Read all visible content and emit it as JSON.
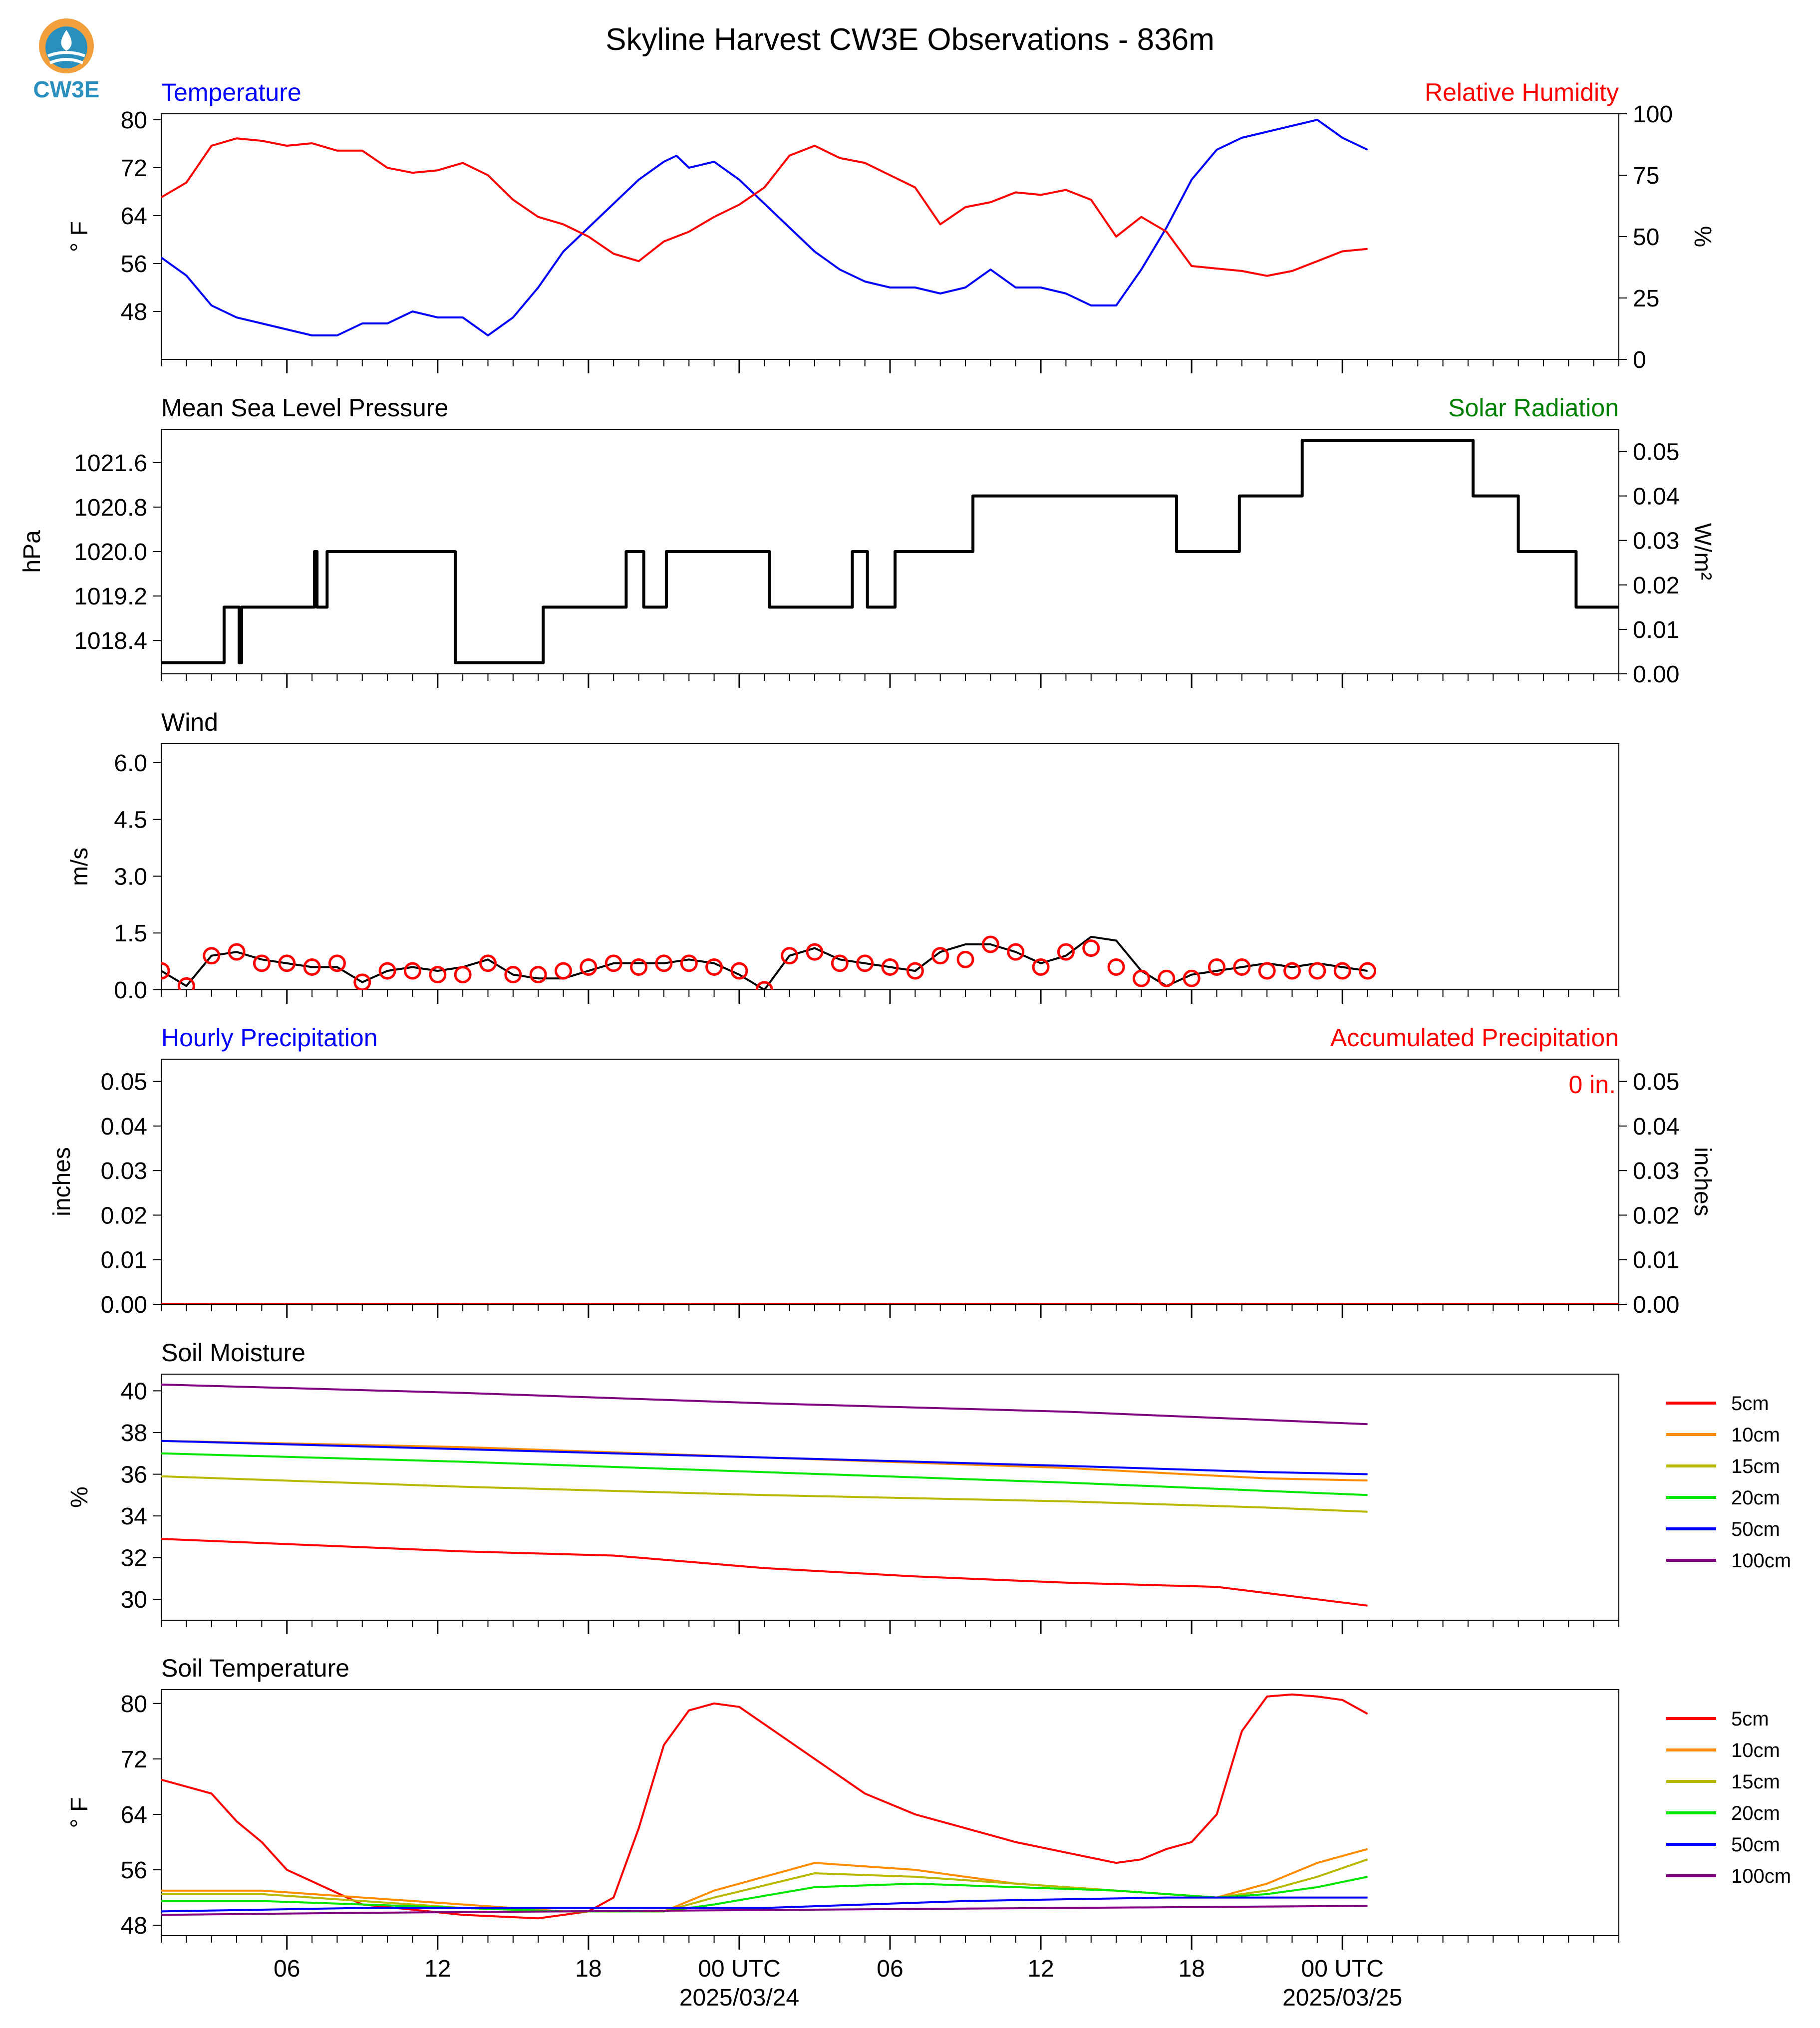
{
  "title": "Skyline Harvest CW3E Observations - 836m",
  "logo": {
    "text": "CW3E",
    "color": "#2a8fbd",
    "accent": "#f2a03d"
  },
  "colors": {
    "blue": "#0000ff",
    "red": "#ff0000",
    "green": "#008000",
    "black": "#000000"
  },
  "x_axis": {
    "range_hours": [
      0,
      58
    ],
    "ticks": [
      {
        "h": 5,
        "label": "06"
      },
      {
        "h": 11,
        "label": "12"
      },
      {
        "h": 17,
        "label": "18"
      },
      {
        "h": 23,
        "label": "00 UTC",
        "date": "2025/03/24"
      },
      {
        "h": 29,
        "label": "06"
      },
      {
        "h": 35,
        "label": "12"
      },
      {
        "h": 41,
        "label": "18"
      },
      {
        "h": 47,
        "label": "00 UTC",
        "date": "2025/03/25"
      }
    ]
  },
  "chart_data": [
    {
      "type": "line",
      "panel": "temperature-rh",
      "title_left": "Temperature",
      "title_right": "Relative Humidity",
      "ylabel": "° F",
      "ylabel_right": "%",
      "ylim": [
        40,
        81
      ],
      "yticks": [
        48,
        56,
        64,
        72,
        80
      ],
      "ylim_right": [
        0,
        100
      ],
      "yticks_right": [
        0,
        25,
        50,
        75,
        100
      ],
      "series": [
        {
          "name": "Temperature",
          "axis": "left",
          "color": "#0000ff",
          "x": [
            0,
            1,
            2,
            3,
            4,
            5,
            6,
            7,
            8,
            9,
            10,
            11,
            12,
            13,
            14,
            15,
            16,
            17,
            18,
            19,
            20,
            20.5,
            21,
            22,
            23,
            24,
            25,
            26,
            27,
            28,
            29,
            30,
            31,
            32,
            33,
            34,
            35,
            36,
            37,
            38,
            39,
            40,
            41,
            42,
            43,
            44,
            45,
            46,
            47,
            48
          ],
          "y": [
            57,
            54,
            49,
            47,
            46,
            45,
            44,
            44,
            46,
            46,
            48,
            47,
            47,
            44,
            47,
            52,
            58,
            62,
            66,
            70,
            73,
            74,
            72,
            73,
            70,
            66,
            62,
            58,
            55,
            53,
            52,
            52,
            51,
            52,
            55,
            52,
            52,
            51,
            49,
            49,
            55,
            62,
            70,
            75,
            77,
            78,
            79,
            80,
            77,
            75
          ]
        },
        {
          "name": "Relative Humidity",
          "axis": "right",
          "color": "#ff0000",
          "x": [
            0,
            1,
            2,
            3,
            4,
            5,
            6,
            7,
            8,
            9,
            10,
            11,
            12,
            13,
            14,
            15,
            16,
            17,
            18,
            19,
            20,
            21,
            22,
            23,
            24,
            25,
            26,
            27,
            28,
            29,
            30,
            31,
            32,
            33,
            34,
            35,
            36,
            37,
            38,
            39,
            40,
            41,
            42,
            43,
            44,
            45,
            46,
            47,
            48
          ],
          "y": [
            66,
            72,
            87,
            90,
            89,
            87,
            88,
            85,
            85,
            78,
            76,
            77,
            80,
            75,
            65,
            58,
            55,
            50,
            43,
            40,
            48,
            52,
            58,
            63,
            70,
            83,
            87,
            82,
            80,
            75,
            70,
            55,
            62,
            64,
            68,
            67,
            69,
            65,
            50,
            58,
            52,
            38,
            37,
            36,
            34,
            36,
            40,
            44,
            45
          ]
        }
      ]
    },
    {
      "type": "line",
      "panel": "pressure",
      "title_left": "Mean Sea Level Pressure",
      "title_right": "Solar Radiation",
      "ylabel": "hPa",
      "ylabel_right": "W/m²",
      "ylim": [
        1017.8,
        1022.2
      ],
      "yticks": [
        1018.4,
        1019.2,
        1020.0,
        1020.8,
        1021.6
      ],
      "ylim_right": [
        0,
        0.055
      ],
      "yticks_right": [
        0.0,
        0.01,
        0.02,
        0.03,
        0.04,
        0.05
      ],
      "series": [
        {
          "name": "Solar Radiation",
          "axis": "right",
          "color": "#000000",
          "x": [
            0,
            2.5,
            2.5,
            3.1,
            3.1,
            3.2,
            3.2,
            6.1,
            6.1,
            6.2,
            6.2,
            6.6,
            6.6,
            11.7,
            11.7,
            15.2,
            15.2,
            18.5,
            18.5,
            19.2,
            19.2,
            20.1,
            20.1,
            24.2,
            24.2,
            27.5,
            27.5,
            28.1,
            28.1,
            29.2,
            29.2,
            32.3,
            32.3,
            40.4,
            40.4,
            42.9,
            42.9,
            45.4,
            45.4,
            52.2,
            52.2,
            54.0,
            54.0,
            56.3,
            56.3,
            56.4,
            56.4,
            58
          ],
          "y": [
            0.0025,
            0.0025,
            0.015,
            0.015,
            0.0025,
            0.0025,
            0.015,
            0.015,
            0.0275,
            0.0275,
            0.015,
            0.015,
            0.0275,
            0.0275,
            0.0025,
            0.0025,
            0.015,
            0.015,
            0.0275,
            0.0275,
            0.015,
            0.015,
            0.0275,
            0.0275,
            0.015,
            0.015,
            0.0275,
            0.0275,
            0.015,
            0.015,
            0.0275,
            0.0275,
            0.04,
            0.04,
            0.0275,
            0.0275,
            0.04,
            0.04,
            0.0525,
            0.0525,
            0.04,
            0.04,
            0.0275,
            0.0275,
            0.015,
            0.015,
            0.015,
            0.015
          ]
        }
      ]
    },
    {
      "type": "line",
      "panel": "wind",
      "title_left": "Wind",
      "ylabel": "m/s",
      "ylim": [
        0,
        6.5
      ],
      "yticks": [
        0.0,
        1.5,
        3.0,
        4.5,
        6.0
      ],
      "series": [
        {
          "name": "Wind speed",
          "color": "#000000",
          "x": [
            0,
            1,
            2,
            3,
            4,
            5,
            6,
            7,
            8,
            9,
            10,
            11,
            12,
            13,
            14,
            15,
            16,
            17,
            18,
            19,
            20,
            21,
            22,
            23,
            24,
            25,
            26,
            27,
            28,
            29,
            30,
            31,
            32,
            33,
            34,
            35,
            36,
            37,
            38,
            39,
            40,
            41,
            42,
            43,
            44,
            45,
            46,
            47,
            48
          ],
          "y": [
            0.5,
            0.1,
            0.9,
            1.0,
            0.8,
            0.7,
            0.6,
            0.6,
            0.2,
            0.5,
            0.6,
            0.5,
            0.6,
            0.8,
            0.4,
            0.3,
            0.3,
            0.5,
            0.7,
            0.7,
            0.7,
            0.8,
            0.7,
            0.4,
            0.0,
            0.9,
            1.1,
            0.8,
            0.7,
            0.6,
            0.5,
            1.0,
            1.2,
            1.2,
            1.0,
            0.7,
            0.9,
            1.4,
            1.3,
            0.5,
            0.1,
            0.4,
            0.5,
            0.6,
            0.7,
            0.6,
            0.7,
            0.6,
            0.5
          ]
        },
        {
          "name": "Gust markers",
          "color": "#ff0000",
          "marker": "circle",
          "x": [
            0,
            1,
            2,
            3,
            4,
            5,
            6,
            7,
            8,
            9,
            10,
            11,
            12,
            13,
            14,
            15,
            16,
            17,
            18,
            19,
            20,
            21,
            22,
            23,
            24,
            25,
            26,
            27,
            28,
            29,
            30,
            31,
            32,
            33,
            34,
            35,
            36,
            37,
            38,
            39,
            40,
            41,
            42,
            43,
            44,
            45,
            46,
            47,
            48
          ],
          "y": [
            0.5,
            0.1,
            0.9,
            1.0,
            0.7,
            0.7,
            0.6,
            0.7,
            0.2,
            0.5,
            0.5,
            0.4,
            0.4,
            0.7,
            0.4,
            0.4,
            0.5,
            0.6,
            0.7,
            0.6,
            0.7,
            0.7,
            0.6,
            0.5,
            0.0,
            0.9,
            1.0,
            0.7,
            0.7,
            0.6,
            0.5,
            0.9,
            0.8,
            1.2,
            1.0,
            0.6,
            1.0,
            1.1,
            0.6,
            0.3,
            0.3,
            0.3,
            0.6,
            0.6,
            0.5,
            0.5,
            0.5,
            0.5,
            0.5
          ]
        }
      ]
    },
    {
      "type": "line",
      "panel": "precipitation",
      "title_left": "Hourly Precipitation",
      "title_right": "Accumulated Precipitation",
      "ylabel": "inches",
      "ylabel_right": "inches",
      "annotation": "0 in.",
      "ylim": [
        0,
        0.055
      ],
      "yticks": [
        0.0,
        0.01,
        0.02,
        0.03,
        0.04,
        0.05
      ],
      "series": [
        {
          "name": "Hourly Precipitation",
          "color": "#0000ff",
          "x": [
            0,
            58
          ],
          "y": [
            0,
            0
          ]
        },
        {
          "name": "Accumulated Precipitation",
          "color": "#ff0000",
          "x": [
            0,
            58
          ],
          "y": [
            0,
            0
          ]
        }
      ]
    },
    {
      "type": "line",
      "panel": "soil-moisture",
      "title_left": "Soil Moisture",
      "ylabel": "%",
      "ylim": [
        29,
        40.8
      ],
      "yticks": [
        30,
        32,
        34,
        36,
        38,
        40
      ],
      "legend": "right",
      "series": [
        {
          "name": "5cm",
          "color": "#ff0000",
          "x": [
            0,
            6,
            12,
            18,
            24,
            30,
            36,
            42,
            46,
            48
          ],
          "y": [
            32.9,
            32.6,
            32.3,
            32.1,
            31.5,
            31.1,
            30.8,
            30.6,
            30.0,
            29.7
          ]
        },
        {
          "name": "10cm",
          "color": "#ff8c00",
          "x": [
            0,
            12,
            24,
            36,
            44,
            48
          ],
          "y": [
            37.6,
            37.3,
            36.8,
            36.3,
            35.8,
            35.7
          ]
        },
        {
          "name": "15cm",
          "color": "#b8b800",
          "x": [
            0,
            12,
            24,
            36,
            44,
            48
          ],
          "y": [
            35.9,
            35.4,
            35.0,
            34.7,
            34.4,
            34.2
          ]
        },
        {
          "name": "20cm",
          "color": "#00e600",
          "x": [
            0,
            12,
            24,
            36,
            44,
            48
          ],
          "y": [
            37.0,
            36.6,
            36.1,
            35.6,
            35.2,
            35.0
          ]
        },
        {
          "name": "50cm",
          "color": "#0000ff",
          "x": [
            0,
            12,
            24,
            36,
            44,
            48
          ],
          "y": [
            37.6,
            37.2,
            36.8,
            36.4,
            36.1,
            36.0
          ]
        },
        {
          "name": "100cm",
          "color": "#800080",
          "x": [
            0,
            12,
            24,
            36,
            44,
            48
          ],
          "y": [
            40.3,
            39.9,
            39.4,
            39.0,
            38.6,
            38.4
          ]
        }
      ]
    },
    {
      "type": "line",
      "panel": "soil-temperature",
      "title_left": "Soil Temperature",
      "ylabel": "° F",
      "ylim": [
        46.5,
        82
      ],
      "yticks": [
        48,
        56,
        64,
        72,
        80
      ],
      "legend": "right",
      "series": [
        {
          "name": "5cm",
          "color": "#ff0000",
          "x": [
            0,
            2,
            3,
            4,
            5,
            8,
            12,
            15,
            17,
            18,
            19,
            20,
            21,
            22,
            23,
            24,
            26,
            28,
            30,
            32,
            34,
            36,
            38,
            39,
            40,
            41,
            42,
            43,
            44,
            45,
            46,
            47,
            48
          ],
          "y": [
            69,
            67,
            63,
            60,
            56,
            51,
            49.5,
            49,
            50,
            52,
            62,
            74,
            79,
            80,
            79.5,
            77,
            72,
            67,
            64,
            62,
            60,
            58.5,
            57,
            57.5,
            59,
            60,
            64,
            76,
            81,
            81.3,
            81,
            80.5,
            78.5
          ]
        },
        {
          "name": "10cm",
          "color": "#ff8c00",
          "x": [
            0,
            4,
            8,
            12,
            16,
            20,
            22,
            26,
            30,
            34,
            38,
            42,
            44,
            46,
            48
          ],
          "y": [
            53,
            53,
            52,
            51,
            50,
            50,
            53,
            57,
            56,
            54,
            53,
            52,
            54,
            57,
            59
          ]
        },
        {
          "name": "15cm",
          "color": "#b8b800",
          "x": [
            0,
            4,
            8,
            12,
            16,
            20,
            22,
            26,
            30,
            34,
            38,
            42,
            44,
            46,
            48
          ],
          "y": [
            52.5,
            52.5,
            51.5,
            50.5,
            50,
            50,
            52,
            55.5,
            55,
            54,
            53,
            52,
            53,
            55,
            57.5
          ]
        },
        {
          "name": "20cm",
          "color": "#00e600",
          "x": [
            0,
            4,
            8,
            12,
            16,
            20,
            22,
            26,
            30,
            34,
            38,
            42,
            44,
            46,
            48
          ],
          "y": [
            51.5,
            51.5,
            51,
            50.5,
            50,
            50,
            51,
            53.5,
            54,
            53.5,
            53,
            52,
            52.5,
            53.5,
            55
          ]
        },
        {
          "name": "50cm",
          "color": "#0000ff",
          "x": [
            0,
            8,
            16,
            24,
            32,
            40,
            48
          ],
          "y": [
            50,
            50.5,
            50.5,
            50.5,
            51.5,
            52,
            52
          ]
        },
        {
          "name": "100cm",
          "color": "#800080",
          "x": [
            0,
            8,
            16,
            24,
            32,
            40,
            48
          ],
          "y": [
            49.5,
            49.8,
            50,
            50.2,
            50.4,
            50.6,
            50.8
          ]
        }
      ]
    }
  ]
}
